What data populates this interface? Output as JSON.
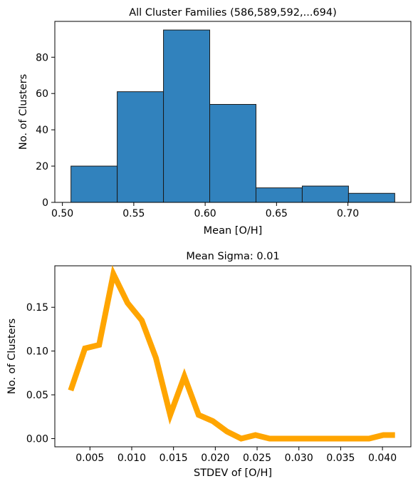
{
  "chart_data": [
    {
      "type": "bar",
      "title": "All Cluster Families (586,589,592,...694)",
      "xlabel": "Mean [O/H]",
      "ylabel": "No. of Clusters",
      "bin_edges": [
        0.506,
        0.5384,
        0.5708,
        0.6032,
        0.6356,
        0.668,
        0.7004,
        0.7328
      ],
      "values": [
        20,
        61,
        95,
        54,
        8,
        9,
        5
      ],
      "xlim": [
        0.4947,
        0.7441
      ],
      "ylim": [
        0,
        99.75
      ],
      "xticks": [
        0.5,
        0.55,
        0.6,
        0.65,
        0.7
      ],
      "xtick_labels": [
        "0.50",
        "0.55",
        "0.60",
        "0.65",
        "0.70"
      ],
      "yticks": [
        0,
        20,
        40,
        60,
        80
      ],
      "ytick_labels": [
        "0",
        "20",
        "40",
        "60",
        "80"
      ],
      "bar_color": "#3182bd",
      "edge_color": "#1a1a1a",
      "grid": false
    },
    {
      "type": "line",
      "title": "Mean Sigma: 0.01",
      "xlabel": "STDEV of [O/H]",
      "ylabel": "No. of Clusters",
      "x": [
        0.0027,
        0.0044,
        0.0061,
        0.0078,
        0.0095,
        0.0112,
        0.0129,
        0.0146,
        0.0163,
        0.018,
        0.0197,
        0.0214,
        0.0231,
        0.0248,
        0.0265,
        0.0282,
        0.0299,
        0.0316,
        0.0333,
        0.035,
        0.0367,
        0.0384,
        0.0401,
        0.0415
      ],
      "values": [
        0.055,
        0.103,
        0.107,
        0.188,
        0.155,
        0.135,
        0.092,
        0.027,
        0.071,
        0.027,
        0.02,
        0.008,
        0.0,
        0.004,
        0.0,
        0.0,
        0.0,
        0.0,
        0.0,
        0.0,
        0.0,
        0.0,
        0.004,
        0.004
      ],
      "xlim": [
        0.0008,
        0.0434
      ],
      "ylim": [
        -0.0094,
        0.1974
      ],
      "xticks": [
        0.005,
        0.01,
        0.015,
        0.02,
        0.025,
        0.03,
        0.035,
        0.04
      ],
      "xtick_labels": [
        "0.005",
        "0.010",
        "0.015",
        "0.020",
        "0.025",
        "0.030",
        "0.035",
        "0.040"
      ],
      "yticks": [
        0.0,
        0.05,
        0.1,
        0.15
      ],
      "ytick_labels": [
        "0.00",
        "0.05",
        "0.10",
        "0.15"
      ],
      "line_color": "#ffa500",
      "grid": false
    }
  ]
}
